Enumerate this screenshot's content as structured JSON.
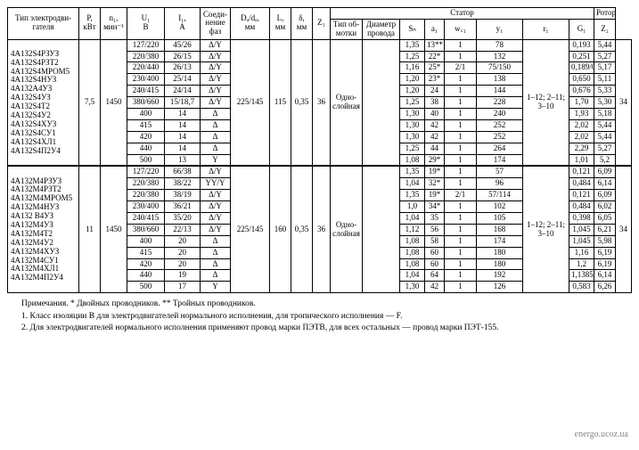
{
  "hdr": {
    "type": "Тип электродви-\nгателя",
    "P": "P,\nкВт",
    "n": "n₁,\nмин⁻¹",
    "U": "U₁\nВ",
    "I": "I₁,\nА",
    "conn": "Соеди-\nнение\nфаз",
    "Dd": "Dₐ/dₐ,\nмм",
    "L": "L,\nмм",
    "delta": "δ,\nмм",
    "Z1": "Z₁",
    "stator": "Статор",
    "wind": "Тип об-\nмотки",
    "diam": "Диаметр\nпровода",
    "Sn": "Sₙ",
    "a1": "a₁",
    "wc1": "w꜀₁",
    "y1": "y₁",
    "r1": "r₁",
    "G1": "G₁",
    "rotor": "Ротор",
    "Z2": "Z₂"
  },
  "g1": {
    "P": "7,5",
    "n": "1450",
    "Dd": "225/145",
    "L": "115",
    "d": "0,35",
    "Z1": "36",
    "wind": "Одно-\nслойная",
    "y1": "1–12; 2–11;\n3–10",
    "Z2": "34",
    "types": [
      "4А132S4РЗУЗ",
      "4А132S4РЗТ2",
      "4А132S4МРОМ5",
      "4А132S4НУЗ",
      "4А132А4УЗ",
      "4А132S4УЗ",
      "4А132S4Т2",
      "4А132S4У2",
      "4А132S4ХУЗ",
      "4А132S4СУ1",
      "4А132S4ХЛ1",
      "4А132S4П2У4"
    ],
    "rows": [
      {
        "U": "127/220",
        "I": "45/26",
        "c": "Δ/Y",
        "Sn": "1,35",
        "a1": "13**",
        "w": "1",
        "wc": "78",
        "r1": "0,193",
        "G1": "5,44"
      },
      {
        "U": "220/380",
        "I": "26/15",
        "c": "Δ/Y",
        "Sn": "1,25",
        "a1": "22*",
        "w": "1",
        "wc": "132",
        "r1": "0,251",
        "G1": "5,27"
      },
      {
        "U": "220/440",
        "I": "26/13",
        "c": "Δ/Y",
        "Sn": "1,16",
        "a1": "25*",
        "w": "2/1",
        "wc": "75/150",
        "r1": "0,189/0,757",
        "G1": "5,17"
      },
      {
        "U": "230/400",
        "I": "25/14",
        "c": "Δ/Y",
        "Sn": "1,20",
        "a1": "23*",
        "w": "1",
        "wc": "138",
        "r1": "0,650",
        "G1": "5,11"
      },
      {
        "U": "240/415",
        "I": "24/14",
        "c": "Δ/Y",
        "Sn": "1,20",
        "a1": "24",
        "w": "1",
        "wc": "144",
        "r1": "0,676",
        "G1": "5,33"
      },
      {
        "U": "380/660",
        "I": "15/18,7",
        "c": "Δ/Y",
        "Sn": "1,25",
        "a1": "38",
        "w": "1",
        "wc": "228",
        "r1": "1,70",
        "G1": "5,30"
      },
      {
        "U": "400",
        "I": "14",
        "c": "Δ",
        "Sn": "1,30",
        "a1": "40",
        "w": "1",
        "wc": "240",
        "r1": "1,93",
        "G1": "5,18"
      },
      {
        "U": "415",
        "I": "14",
        "c": "Δ",
        "Sn": "1,30",
        "a1": "42",
        "w": "1",
        "wc": "252",
        "r1": "2,02",
        "G1": "5,44"
      },
      {
        "U": "420",
        "I": "14",
        "c": "Δ",
        "Sn": "1,30",
        "a1": "42",
        "w": "1",
        "wc": "252",
        "r1": "2,02",
        "G1": "5,44"
      },
      {
        "U": "440",
        "I": "14",
        "c": "Δ",
        "Sn": "1,25",
        "a1": "44",
        "w": "1",
        "wc": "264",
        "r1": "2,29",
        "G1": "5,27"
      },
      {
        "U": "500",
        "I": "13",
        "c": "Y",
        "Sn": "1,08",
        "a1": "29*",
        "w": "1",
        "wc": "174",
        "r1": "1,01",
        "G1": "5,2"
      }
    ]
  },
  "g2": {
    "P": "11",
    "n": "1450",
    "Dd": "225/145",
    "L": "160",
    "d": "0,35",
    "Z1": "36",
    "wind": "Одно-\nслойная",
    "y1": "1–12; 2–11;\n3–10",
    "Z2": "34",
    "types": [
      "4А132М4РЗУЗ",
      "4А132М4РЗТ2",
      "4А132М4МРОМ5",
      "4А132М4НУЗ",
      "4А132 В4УЗ",
      "4А132М4УЗ",
      "4А132М4Т2",
      "4А132М4У2",
      "4А132М4ХУЗ",
      "4А132М4СУ1",
      "4А132М4ХЛ1",
      "4А132М4П2У4"
    ],
    "rows": [
      {
        "U": "127/220",
        "I": "66/38",
        "c": "Δ/Y",
        "Sn": "1,35",
        "a1": "19*",
        "w": "1",
        "wc": "57",
        "r1": "0,121",
        "G1": "6,09"
      },
      {
        "U": "220/380",
        "I": "38/22",
        "c": "YY/Y",
        "Sn": "1,04",
        "a1": "32*",
        "w": "1",
        "wc": "96",
        "r1": "0,484",
        "G1": "6,14"
      },
      {
        "U": "220/380",
        "I": "38/19",
        "c": "Δ/Y",
        "Sn": "1,35",
        "a1": "19*",
        "w": "2/1",
        "wc": "57/114",
        "r1": "0,121",
        "G1": "6,09"
      },
      {
        "U": "230/400",
        "I": "36/21",
        "c": "Δ/Y",
        "Sn": "1,0",
        "a1": "34*",
        "w": "1",
        "wc": "102",
        "r1": "0,484",
        "G1": "6,02"
      },
      {
        "U": "240/415",
        "I": "35/20",
        "c": "Δ/Y",
        "Sn": "1,04",
        "a1": "35",
        "w": "1",
        "wc": "105",
        "r1": "0,398",
        "G1": "6,05"
      },
      {
        "U": "380/660",
        "I": "22/13",
        "c": "Δ/Y",
        "Sn": "1,12",
        "a1": "56",
        "w": "1",
        "wc": "168",
        "r1": "1,045",
        "G1": "6,21"
      },
      {
        "U": "400",
        "I": "20",
        "c": "Δ",
        "Sn": "1,08",
        "a1": "58",
        "w": "1",
        "wc": "174",
        "r1": "1,045",
        "G1": "5,98"
      },
      {
        "U": "415",
        "I": "20",
        "c": "Δ",
        "Sn": "1,08",
        "a1": "60",
        "w": "1",
        "wc": "180",
        "r1": "1,16",
        "G1": "6,19"
      },
      {
        "U": "420",
        "I": "20",
        "c": "Δ",
        "Sn": "1,08",
        "a1": "60",
        "w": "1",
        "wc": "180",
        "r1": "1,2",
        "G1": "6,19"
      },
      {
        "U": "440",
        "I": "19",
        "c": "Δ",
        "Sn": "1,04",
        "a1": "64",
        "w": "1",
        "wc": "192",
        "r1": "1,1385",
        "G1": "6,14"
      },
      {
        "U": "500",
        "I": "17",
        "c": "Y",
        "Sn": "1,30",
        "a1": "42",
        "w": "1",
        "wc": "126",
        "r1": "0,583",
        "G1": "6,26"
      }
    ]
  },
  "notes": {
    "head": "Примечания. * Двойных проводников. ** Тройных проводников.",
    "n1": "1. Класс изоляции В для электродвигателей нормального исполнения, для тропического исполнения — F.",
    "n2": "2. Для электродвигателей нормального исполнения применяют провод марки ПЭТВ, для всех остальных — провод марки ПЭТ-155."
  },
  "wm": "energo.ucoz.ua"
}
